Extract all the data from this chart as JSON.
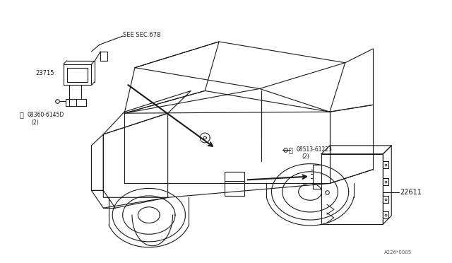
{
  "background_color": "#ffffff",
  "line_color": "#1a1a1a",
  "figure_width": 6.4,
  "figure_height": 3.72,
  "dpi": 100,
  "label_see_sec": "SEE SEC.678",
  "label_23715": "23715",
  "label_screw1": "08360-6145D",
  "label_screw1_qty": "(2)",
  "label_22611": "22611",
  "label_screw2": "08513-61223",
  "label_screw2_qty": "(2)",
  "label_fignum": "A226*0005"
}
